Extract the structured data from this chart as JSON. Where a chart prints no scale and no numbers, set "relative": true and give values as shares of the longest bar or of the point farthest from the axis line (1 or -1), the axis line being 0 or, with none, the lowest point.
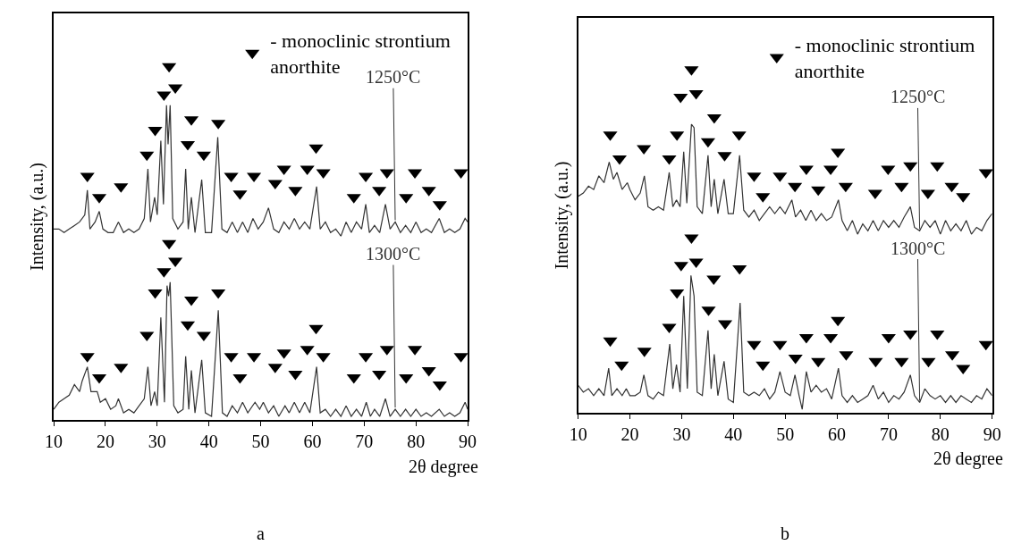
{
  "chart_data": [
    {
      "type": "line",
      "xlabel": "2θ degree",
      "ylabel": "Intensity, (a.u.)",
      "xlim": [
        10,
        90
      ],
      "xticks": [
        10,
        20,
        30,
        40,
        50,
        60,
        70,
        80,
        90
      ],
      "relative": true,
      "legend": "top right",
      "annotations": [
        "a"
      ],
      "series": [
        {
          "name": "1250°C",
          "color": "#333333",
          "x": [
            10,
            11,
            12,
            13,
            14,
            15,
            16,
            16.5,
            17,
            18,
            18.8,
            19.5,
            20.5,
            21.5,
            22.5,
            23.5,
            24.5,
            25.5,
            26.5,
            27.5,
            28.2,
            28.7,
            29.5,
            30,
            30.7,
            31.2,
            31.8,
            32.1,
            32.5,
            33,
            34,
            35,
            35.5,
            36,
            36.6,
            37.3,
            38.6,
            39.3,
            40.5,
            41.7,
            42.5,
            43.5,
            44.5,
            45.5,
            46.5,
            47.5,
            48.5,
            49.5,
            50.5,
            51.5,
            52.5,
            53.5,
            54.5,
            55.5,
            56.5,
            57.5,
            58.5,
            59.5,
            60.8,
            61.5,
            62.5,
            63.5,
            64.5,
            65.5,
            66.5,
            67.5,
            68.5,
            69.5,
            70.3,
            71,
            72,
            73,
            74.1,
            75,
            76,
            77,
            78,
            79,
            80,
            81,
            82,
            83,
            84.5,
            85.5,
            86.5,
            87.5,
            88.5,
            89.5,
            90
          ],
          "values": [
            0.54,
            0.54,
            0.53,
            0.54,
            0.55,
            0.56,
            0.58,
            0.65,
            0.54,
            0.56,
            0.59,
            0.54,
            0.53,
            0.53,
            0.56,
            0.53,
            0.54,
            0.53,
            0.54,
            0.57,
            0.71,
            0.56,
            0.63,
            0.58,
            0.79,
            0.61,
            0.89,
            0.78,
            0.89,
            0.57,
            0.54,
            0.56,
            0.71,
            0.54,
            0.63,
            0.53,
            0.68,
            0.53,
            0.53,
            0.8,
            0.54,
            0.53,
            0.56,
            0.53,
            0.56,
            0.53,
            0.57,
            0.54,
            0.56,
            0.6,
            0.54,
            0.53,
            0.56,
            0.54,
            0.57,
            0.54,
            0.56,
            0.54,
            0.66,
            0.54,
            0.56,
            0.53,
            0.54,
            0.52,
            0.56,
            0.53,
            0.56,
            0.54,
            0.61,
            0.53,
            0.55,
            0.53,
            0.61,
            0.54,
            0.56,
            0.53,
            0.55,
            0.53,
            0.56,
            0.53,
            0.54,
            0.53,
            0.57,
            0.53,
            0.54,
            0.53,
            0.54,
            0.57,
            0.56
          ]
        },
        {
          "name": "1300°C",
          "color": "#333333",
          "x": [
            10,
            11,
            12,
            13,
            14,
            15,
            15.5,
            16.5,
            17.2,
            18.4,
            19,
            20,
            21,
            22,
            22.5,
            23.5,
            24.5,
            25.5,
            26.5,
            27.5,
            28.2,
            28.8,
            29.5,
            30,
            30.7,
            31.4,
            31.9,
            32.2,
            32.5,
            33.2,
            34,
            35,
            35.5,
            36.1,
            36.6,
            37.3,
            38.6,
            39.3,
            40.5,
            41.8,
            42.6,
            43.5,
            44.5,
            45.5,
            46.5,
            47.5,
            48.9,
            49.8,
            50.5,
            51.5,
            52.5,
            53.5,
            54.7,
            55.5,
            56.5,
            57.5,
            58.5,
            59.5,
            60.8,
            61.5,
            62.5,
            63.5,
            64.5,
            65.5,
            66.5,
            67.5,
            68.5,
            69.5,
            70.4,
            71.2,
            72,
            73,
            74.1,
            75,
            76,
            77,
            78,
            79,
            80,
            81,
            82,
            83,
            84.5,
            85.5,
            86.5,
            87.5,
            88.5,
            89.5,
            90
          ],
          "values": [
            0.03,
            0.05,
            0.06,
            0.07,
            0.1,
            0.08,
            0.11,
            0.15,
            0.08,
            0.08,
            0.05,
            0.06,
            0.03,
            0.04,
            0.06,
            0.02,
            0.03,
            0.02,
            0.04,
            0.06,
            0.15,
            0.04,
            0.08,
            0.04,
            0.29,
            0.05,
            0.38,
            0.35,
            0.39,
            0.04,
            0.02,
            0.03,
            0.18,
            0.03,
            0.14,
            0.02,
            0.17,
            0.02,
            0.01,
            0.31,
            0.02,
            0.01,
            0.04,
            0.02,
            0.05,
            0.02,
            0.05,
            0.03,
            0.05,
            0.02,
            0.04,
            0.01,
            0.04,
            0.02,
            0.05,
            0.02,
            0.05,
            0.02,
            0.15,
            0.02,
            0.03,
            0.01,
            0.03,
            0.01,
            0.04,
            0.01,
            0.03,
            0.01,
            0.05,
            0.01,
            0.03,
            0.01,
            0.06,
            0.01,
            0.03,
            0.01,
            0.03,
            0.01,
            0.03,
            0.01,
            0.02,
            0.01,
            0.03,
            0.01,
            0.02,
            0.01,
            0.02,
            0.05,
            0.03
          ]
        },
        {
          "name": "- monoclinic strontium\nanorthite",
          "type": "scatter",
          "marker": "triangle",
          "color": "#000000",
          "x": [
            16.5,
            18.8,
            23.0,
            28.0,
            29.6,
            31.3,
            32.3,
            33.5,
            35.9,
            36.6,
            39.0,
            41.8,
            44.3,
            46.0,
            48.7,
            52.8,
            54.5,
            56.7,
            59.0,
            60.7,
            62.1,
            68.0,
            70.3,
            72.9,
            74.4,
            78.1,
            79.8,
            82.5,
            84.6,
            88.7,
            16.5,
            18.8,
            23.0,
            28.0,
            29.6,
            31.3,
            32.3,
            33.5,
            35.9,
            36.6,
            39.0,
            41.8,
            44.3,
            46.0,
            48.7,
            52.8,
            54.5,
            56.7,
            59.0,
            60.7,
            62.1,
            68.0,
            70.3,
            72.9,
            74.4,
            78.1,
            79.8,
            82.5,
            84.6,
            88.7
          ],
          "values": [
            0.69,
            0.63,
            0.66,
            0.75,
            0.82,
            0.92,
            1.0,
            0.94,
            0.78,
            0.85,
            0.75,
            0.84,
            0.69,
            0.64,
            0.69,
            0.67,
            0.71,
            0.65,
            0.71,
            0.77,
            0.7,
            0.63,
            0.69,
            0.65,
            0.7,
            0.63,
            0.7,
            0.65,
            0.61,
            0.7,
            0.18,
            0.12,
            0.15,
            0.24,
            0.36,
            0.42,
            0.5,
            0.45,
            0.27,
            0.34,
            0.24,
            0.36,
            0.18,
            0.12,
            0.18,
            0.15,
            0.19,
            0.13,
            0.2,
            0.26,
            0.18,
            0.12,
            0.18,
            0.13,
            0.2,
            0.12,
            0.2,
            0.14,
            0.1,
            0.18
          ]
        }
      ]
    },
    {
      "type": "line",
      "xlabel": "2θ degree",
      "ylabel": "Intensity, (a.u.)",
      "xlim": [
        10,
        90
      ],
      "xticks": [
        10,
        20,
        30,
        40,
        50,
        60,
        70,
        80,
        90
      ],
      "relative": true,
      "legend": "top right",
      "annotations": [
        "b"
      ],
      "series": [
        {
          "name": "1250°C",
          "color": "#333333",
          "x": [
            10,
            11,
            12,
            13,
            14,
            15,
            16,
            16.8,
            17.5,
            18.5,
            19.5,
            20,
            21,
            22,
            22.8,
            23.5,
            24.5,
            25.5,
            26.5,
            27.6,
            28.3,
            29,
            29.7,
            30.4,
            31,
            31.9,
            32.4,
            33,
            34,
            35.1,
            35.7,
            36.3,
            37,
            38.2,
            39,
            40,
            41.2,
            42,
            43,
            44,
            45,
            46,
            47,
            48,
            49,
            50,
            51.3,
            52,
            53,
            54,
            55,
            56,
            57,
            58,
            59,
            60.3,
            61,
            62,
            63,
            64,
            65,
            66,
            67,
            68,
            69,
            70,
            71,
            72,
            73,
            74.2,
            75,
            76,
            77,
            78,
            79,
            80,
            81,
            82,
            83,
            84,
            85,
            86,
            87,
            88,
            89,
            90
          ],
          "values": [
            0.63,
            0.64,
            0.66,
            0.65,
            0.69,
            0.67,
            0.73,
            0.68,
            0.7,
            0.65,
            0.67,
            0.65,
            0.62,
            0.64,
            0.69,
            0.6,
            0.59,
            0.6,
            0.59,
            0.7,
            0.6,
            0.62,
            0.6,
            0.76,
            0.61,
            0.84,
            0.83,
            0.6,
            0.58,
            0.75,
            0.6,
            0.68,
            0.58,
            0.68,
            0.58,
            0.58,
            0.75,
            0.59,
            0.57,
            0.59,
            0.56,
            0.58,
            0.6,
            0.58,
            0.6,
            0.58,
            0.62,
            0.57,
            0.59,
            0.56,
            0.59,
            0.56,
            0.58,
            0.56,
            0.57,
            0.62,
            0.56,
            0.53,
            0.56,
            0.52,
            0.55,
            0.53,
            0.56,
            0.53,
            0.56,
            0.54,
            0.56,
            0.54,
            0.57,
            0.6,
            0.54,
            0.53,
            0.56,
            0.54,
            0.56,
            0.52,
            0.56,
            0.53,
            0.55,
            0.53,
            0.56,
            0.52,
            0.54,
            0.53,
            0.56,
            0.58
          ]
        },
        {
          "name": "1300°C",
          "color": "#333333",
          "x": [
            10,
            11,
            12,
            13,
            14,
            15,
            15.9,
            16.5,
            17.5,
            18.5,
            19.3,
            20,
            21,
            22,
            22.7,
            23.5,
            24.5,
            25.5,
            26.5,
            27.7,
            28.3,
            29,
            29.7,
            30.4,
            31.1,
            31.8,
            32.4,
            33,
            34,
            35.1,
            35.7,
            36.3,
            37,
            38.2,
            39,
            40,
            41.3,
            42,
            43,
            44,
            45,
            46,
            47,
            48,
            49,
            50,
            51,
            51.9,
            52.7,
            53.3,
            54.1,
            55,
            56,
            57,
            58,
            59,
            60.3,
            61,
            62,
            63,
            64,
            65,
            66,
            67,
            68,
            69,
            70,
            71,
            72,
            73,
            74.2,
            75,
            76,
            77,
            78,
            79,
            80,
            81,
            82,
            83,
            84,
            85,
            86,
            87,
            88,
            89,
            90
          ],
          "values": [
            0.08,
            0.06,
            0.07,
            0.05,
            0.07,
            0.05,
            0.13,
            0.05,
            0.07,
            0.05,
            0.07,
            0.05,
            0.05,
            0.06,
            0.11,
            0.05,
            0.04,
            0.06,
            0.05,
            0.2,
            0.07,
            0.14,
            0.06,
            0.34,
            0.07,
            0.4,
            0.34,
            0.06,
            0.05,
            0.24,
            0.07,
            0.17,
            0.05,
            0.15,
            0.04,
            0.03,
            0.32,
            0.06,
            0.05,
            0.06,
            0.05,
            0.07,
            0.04,
            0.06,
            0.12,
            0.06,
            0.05,
            0.11,
            0.05,
            0.01,
            0.12,
            0.06,
            0.08,
            0.06,
            0.07,
            0.04,
            0.13,
            0.05,
            0.03,
            0.05,
            0.03,
            0.04,
            0.05,
            0.08,
            0.04,
            0.06,
            0.03,
            0.05,
            0.04,
            0.06,
            0.11,
            0.05,
            0.03,
            0.07,
            0.05,
            0.04,
            0.05,
            0.03,
            0.05,
            0.03,
            0.05,
            0.04,
            0.03,
            0.05,
            0.04,
            0.07,
            0.05
          ]
        },
        {
          "name": "- monoclinic strontium\nanorthite",
          "type": "scatter",
          "marker": "triangle",
          "color": "#000000",
          "x": [
            16.2,
            18.0,
            22.7,
            27.6,
            29.1,
            29.8,
            31.9,
            32.8,
            35.1,
            36.3,
            38.3,
            41.1,
            44.0,
            45.7,
            49.0,
            51.9,
            54.1,
            56.4,
            58.8,
            60.2,
            61.7,
            67.4,
            69.9,
            72.5,
            74.2,
            77.6,
            79.4,
            82.2,
            84.4,
            88.8,
            16.2,
            18.4,
            22.8,
            27.6,
            29.1,
            29.9,
            31.9,
            32.8,
            35.2,
            36.2,
            38.4,
            41.2,
            44.0,
            45.7,
            49.0,
            52.0,
            54.1,
            56.4,
            58.8,
            60.2,
            61.8,
            67.5,
            70.0,
            72.5,
            74.2,
            77.7,
            79.4,
            82.3,
            84.4,
            88.8
          ],
          "values": [
            0.81,
            0.74,
            0.77,
            0.74,
            0.81,
            0.92,
            1.0,
            0.93,
            0.79,
            0.86,
            0.75,
            0.81,
            0.69,
            0.63,
            0.69,
            0.66,
            0.71,
            0.65,
            0.71,
            0.76,
            0.66,
            0.64,
            0.71,
            0.66,
            0.72,
            0.64,
            0.72,
            0.66,
            0.63,
            0.7,
            0.21,
            0.14,
            0.18,
            0.25,
            0.35,
            0.43,
            0.51,
            0.44,
            0.3,
            0.39,
            0.26,
            0.42,
            0.2,
            0.14,
            0.2,
            0.16,
            0.22,
            0.15,
            0.22,
            0.27,
            0.17,
            0.15,
            0.22,
            0.15,
            0.23,
            0.15,
            0.23,
            0.17,
            0.13,
            0.2
          ]
        }
      ]
    }
  ]
}
